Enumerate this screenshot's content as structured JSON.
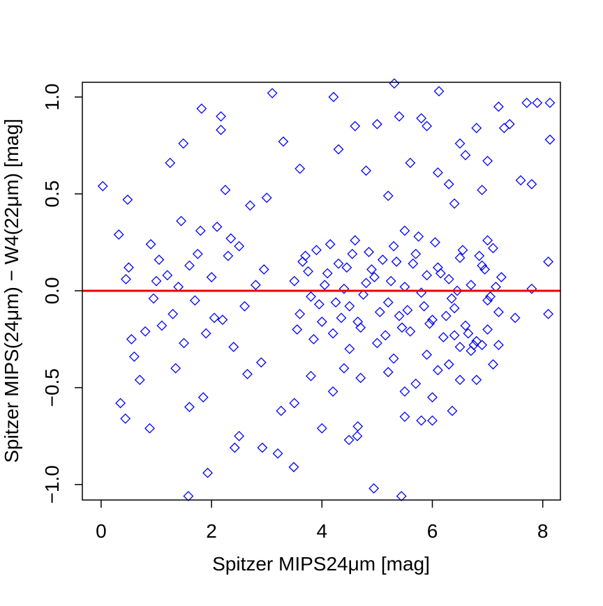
{
  "chart_data": {
    "type": "scatter",
    "x_label": "Spitzer MIPS24μm [mag]",
    "y_label": "Spitzer MIPS(24μm) − W4(22μm) [mag]",
    "color": "#0000ff",
    "hline": 0,
    "hline_color": "#ee0000",
    "xlim": [
      -0.34,
      8.32
    ],
    "ylim": [
      -1.08,
      1.076
    ],
    "xticks": [
      0,
      2,
      4,
      6,
      8
    ],
    "yticks": [
      {
        "value": -1,
        "label": "−1.0"
      },
      {
        "value": -0.5,
        "label": "−0.5"
      },
      {
        "value": 0,
        "label": "0.0"
      },
      {
        "value": 0.5,
        "label": "0.5"
      },
      {
        "value": 1,
        "label": "1.0"
      }
    ],
    "x": [
      0.03,
      0.32,
      0.48,
      0.35,
      0.44,
      0.88,
      1.25,
      1.49,
      1.82,
      2.17,
      2.17,
      3.1,
      4.21,
      5.31,
      6.12,
      7.71,
      8.13,
      7.9,
      8.13,
      1.58,
      1.93,
      4.94,
      5.44,
      3.2,
      2.92,
      2.42,
      2.5,
      3.26,
      4.49,
      4.65,
      4.64,
      5.5,
      6.0,
      5.8,
      6.36,
      3.49,
      0.5,
      0.6,
      0.7,
      0.9,
      1.0,
      1.1,
      1.2,
      1.3,
      1.4,
      1.5,
      1.6,
      1.7,
      1.8,
      1.9,
      2.0,
      2.1,
      2.2,
      2.3,
      2.4,
      2.5,
      2.6,
      2.7,
      2.8,
      2.9,
      3.0,
      0.45,
      0.8,
      1.05,
      1.35,
      1.6,
      1.85,
      2.05,
      2.35,
      2.65,
      2.95,
      0.55,
      0.95,
      1.45,
      1.75,
      2.25,
      5.4,
      5.6,
      5.8,
      5.9,
      6.1,
      6.3,
      6.5,
      6.6,
      6.8,
      7.0,
      7.2,
      7.4,
      7.6,
      7.8,
      8.1,
      7.3,
      6.9,
      6.4,
      5.2,
      4.6,
      4.3,
      3.6,
      3.3,
      4.8,
      5.0,
      5.2,
      5.5,
      5.7,
      6.1,
      6.3,
      6.5,
      6.7,
      6.9,
      7.1,
      7.2,
      7.5,
      7.8,
      8.1,
      6.0,
      5.9,
      6.4,
      6.8,
      7.0,
      5.3,
      4.7,
      4.2,
      3.8,
      3.5,
      4.0,
      4.4,
      3.5,
      3.6,
      3.7,
      3.8,
      3.9,
      4.0,
      4.1,
      4.2,
      4.3,
      4.4,
      4.5,
      4.6,
      4.7,
      4.8,
      4.9,
      5.0,
      5.1,
      5.2,
      5.3,
      5.4,
      5.5,
      5.6,
      5.7,
      5.8,
      5.9,
      6.0,
      6.1,
      6.2,
      6.3,
      6.4,
      6.5,
      6.6,
      6.7,
      6.8,
      6.9,
      7.0,
      7.1,
      7.2,
      3.55,
      3.75,
      3.95,
      4.15,
      4.35,
      4.55,
      4.75,
      4.95,
      5.15,
      5.35,
      5.55,
      5.75,
      5.95,
      6.15,
      6.35,
      6.55,
      6.75,
      6.95,
      7.15,
      3.65,
      3.85,
      4.05,
      4.25,
      4.45,
      4.65,
      4.85,
      5.05,
      5.25,
      5.45,
      5.65,
      5.85,
      6.05,
      6.25,
      6.45,
      6.65,
      6.85,
      7.05,
      7.25,
      4.5,
      5.5,
      6.5,
      7.0
    ],
    "values": [
      0.54,
      0.29,
      0.47,
      -0.58,
      -0.66,
      -0.71,
      0.66,
      0.76,
      0.94,
      0.9,
      0.83,
      1.02,
      1.0,
      1.07,
      1.03,
      0.97,
      0.97,
      0.97,
      0.78,
      -1.06,
      -0.94,
      -1.02,
      -1.06,
      -0.84,
      -0.81,
      -0.81,
      -0.75,
      -0.62,
      -0.77,
      -0.7,
      -0.75,
      -0.65,
      -0.67,
      -0.67,
      -0.62,
      -0.91,
      0.12,
      -0.34,
      -0.46,
      0.24,
      0.05,
      -0.18,
      0.08,
      -0.12,
      0.02,
      -0.27,
      0.13,
      -0.05,
      0.31,
      -0.22,
      0.07,
      0.33,
      -0.15,
      0.18,
      -0.29,
      0.23,
      -0.08,
      0.44,
      0.03,
      -0.37,
      0.48,
      0.06,
      -0.21,
      0.16,
      -0.4,
      -0.6,
      -0.55,
      -0.14,
      0.27,
      -0.43,
      0.11,
      -0.25,
      -0.04,
      0.36,
      0.19,
      0.52,
      0.9,
      0.66,
      0.89,
      0.85,
      0.61,
      0.55,
      0.76,
      0.7,
      0.84,
      0.67,
      0.95,
      0.86,
      0.57,
      0.55,
      0.15,
      0.84,
      0.52,
      0.45,
      0.49,
      0.85,
      0.73,
      0.63,
      0.77,
      0.62,
      0.86,
      -0.42,
      -0.52,
      -0.48,
      -0.41,
      -0.38,
      -0.46,
      -0.31,
      -0.28,
      -0.38,
      -0.28,
      -0.14,
      0.01,
      -0.12,
      -0.55,
      -0.33,
      -0.23,
      -0.46,
      -0.2,
      -0.35,
      -0.45,
      -0.52,
      -0.44,
      -0.58,
      -0.71,
      -0.4,
      0.05,
      -0.12,
      0.18,
      -0.03,
      0.21,
      -0.16,
      0.09,
      -0.22,
      0.14,
      0.01,
      -0.08,
      0.26,
      -0.19,
      0.04,
      0.11,
      -0.27,
      0.16,
      -0.06,
      0.23,
      -0.13,
      0.02,
      -0.21,
      0.19,
      -0.01,
      0.08,
      -0.15,
      0.12,
      -0.24,
      0.06,
      -0.09,
      0.17,
      -0.18,
      0.03,
      -0.26,
      0.13,
      -0.05,
      0.22,
      -0.11,
      -0.2,
      0.1,
      -0.07,
      0.24,
      -0.14,
      0.19,
      -0.02,
      0.07,
      -0.23,
      0.15,
      -0.1,
      0.28,
      -0.17,
      0.09,
      -0.04,
      0.21,
      -0.28,
      0.11,
      0.02,
      0.15,
      -0.25,
      0.03,
      -0.06,
      0.12,
      -0.16,
      0.2,
      -0.11,
      0.05,
      -0.19,
      0.14,
      -0.08,
      0.25,
      -0.13,
      0.0,
      -0.22,
      0.18,
      -0.03,
      0.07,
      -0.3,
      0.31,
      -0.29,
      0.26
    ]
  }
}
